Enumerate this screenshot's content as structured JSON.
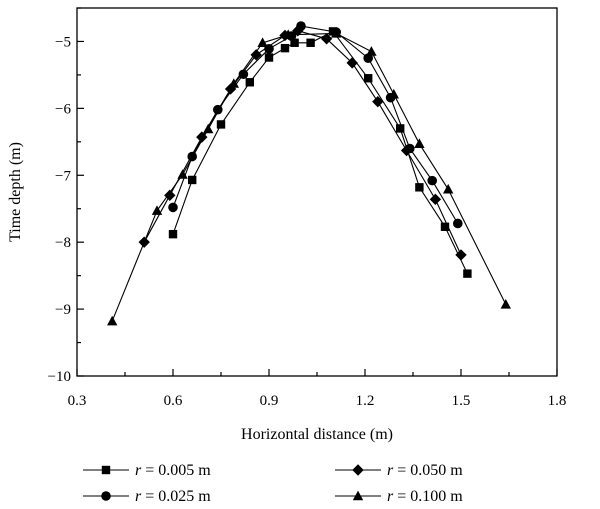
{
  "chart_data": {
    "type": "line",
    "xlabel": "Horizontal distance (m)",
    "ylabel": "Time depth (m)",
    "xlim": [
      0.3,
      1.8
    ],
    "ylim": [
      -10,
      -4.5
    ],
    "xticks": [
      0.3,
      0.6,
      0.9,
      1.2,
      1.5,
      1.8
    ],
    "yticks": [
      -10,
      -9,
      -8,
      -7,
      -6,
      -5
    ],
    "xtick_labels": [
      "0.3",
      "0.6",
      "0.9",
      "1.2",
      "1.5",
      "1.8"
    ],
    "ytick_labels": [
      "−10",
      "−9",
      "−8",
      "−7",
      "−6",
      "−5"
    ],
    "grid": false,
    "legend_position": "bottom",
    "series": [
      {
        "name": "r = 0.005 m",
        "label_var": "r",
        "label_rest": " = 0.005 m",
        "marker": "square",
        "color": "#000000",
        "x": [
          0.6,
          0.66,
          0.75,
          0.84,
          0.9,
          0.95,
          0.98,
          1.03,
          1.1,
          1.21,
          1.31,
          1.37,
          1.45,
          1.52
        ],
        "y": [
          -7.88,
          -7.07,
          -6.24,
          -5.61,
          -5.24,
          -5.1,
          -5.02,
          -5.02,
          -4.85,
          -5.55,
          -6.3,
          -7.18,
          -7.77,
          -8.47
        ]
      },
      {
        "name": "r = 0.025 m",
        "label_var": "r",
        "label_rest": " = 0.025 m",
        "marker": "circle",
        "color": "#000000",
        "x": [
          0.6,
          0.66,
          0.74,
          0.82,
          0.9,
          0.97,
          1.0,
          1.11,
          1.21,
          1.28,
          1.34,
          1.41,
          1.49
        ],
        "y": [
          -7.48,
          -6.72,
          -6.02,
          -5.49,
          -5.11,
          -4.92,
          -4.77,
          -4.86,
          -5.25,
          -5.84,
          -6.6,
          -7.08,
          -7.72
        ]
      },
      {
        "name": "r = 0.050 m",
        "label_var": "r",
        "label_rest": " = 0.050 m",
        "marker": "diamond",
        "color": "#000000",
        "x": [
          0.51,
          0.59,
          0.69,
          0.78,
          0.86,
          0.95,
          0.99,
          1.08,
          1.16,
          1.24,
          1.33,
          1.42,
          1.5
        ],
        "y": [
          -8.0,
          -7.3,
          -6.43,
          -5.71,
          -5.2,
          -4.91,
          -4.84,
          -4.96,
          -5.32,
          -5.9,
          -6.63,
          -7.36,
          -8.19
        ]
      },
      {
        "name": "r = 0.100 m",
        "label_var": "r",
        "label_rest": " = 0.100 m",
        "marker": "triangle",
        "color": "#000000",
        "x": [
          0.41,
          0.55,
          0.63,
          0.71,
          0.79,
          0.88,
          0.96,
          1.11,
          1.22,
          1.29,
          1.37,
          1.46,
          1.64
        ],
        "y": [
          -9.18,
          -7.53,
          -6.99,
          -6.31,
          -5.63,
          -5.02,
          -4.9,
          -4.88,
          -5.15,
          -5.79,
          -6.53,
          -7.21,
          -8.93
        ]
      }
    ]
  }
}
